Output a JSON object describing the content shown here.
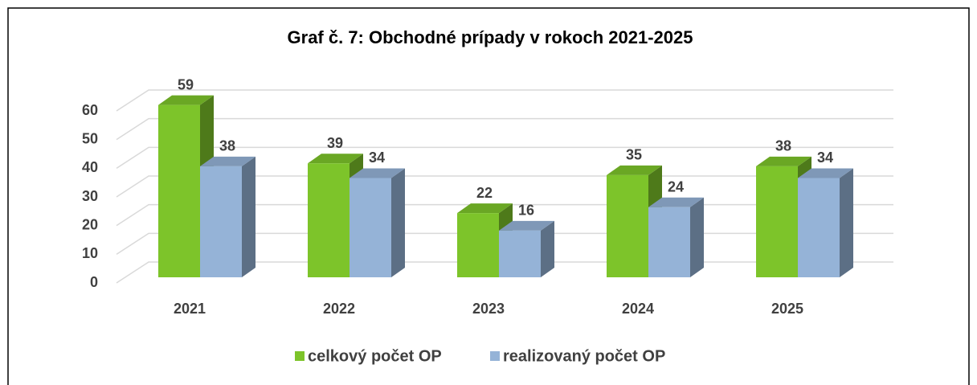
{
  "chart_data": {
    "type": "bar3d",
    "title": "Graf č. 7: Obchodné prípady v rokoch 2021-2025",
    "categories": [
      "2021",
      "2022",
      "2023",
      "2024",
      "2025"
    ],
    "series": [
      {
        "name": "celkový počet OP",
        "color": "#7dc42a",
        "values": [
          59,
          39,
          22,
          35,
          38
        ]
      },
      {
        "name": "realizovaný počet OP",
        "color": "#95b3d7",
        "values": [
          38,
          34,
          16,
          24,
          34
        ]
      }
    ],
    "ylim": [
      0,
      60
    ],
    "yticks": [
      0,
      10,
      20,
      30,
      40,
      50,
      60
    ],
    "grid": true,
    "legend": "bottom"
  }
}
